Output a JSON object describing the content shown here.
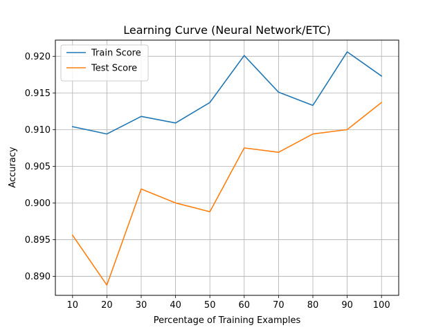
{
  "chart_data": {
    "type": "line",
    "title": "Learning Curve (Neural Network/ETC)",
    "xlabel": "Percentage of Training Examples",
    "ylabel": "Accuracy",
    "x": [
      10,
      20,
      30,
      40,
      50,
      60,
      70,
      80,
      90,
      100
    ],
    "xlim": [
      5,
      105
    ],
    "ylim": [
      0.8874,
      0.9222
    ],
    "yticks": [
      0.89,
      0.895,
      0.9,
      0.905,
      0.91,
      0.915,
      0.92
    ],
    "ytick_labels": [
      "0.890",
      "0.895",
      "0.900",
      "0.905",
      "0.910",
      "0.915",
      "0.920"
    ],
    "xtick_labels": [
      "10",
      "20",
      "30",
      "40",
      "50",
      "60",
      "70",
      "80",
      "90",
      "100"
    ],
    "grid": true,
    "legend_position": "top-left",
    "series": [
      {
        "name": "Train Score",
        "color": "#1f77b4",
        "values": [
          0.9104,
          0.9094,
          0.9118,
          0.9109,
          0.9137,
          0.9201,
          0.9151,
          0.9133,
          0.9206,
          0.9173
        ]
      },
      {
        "name": "Test Score",
        "color": "#ff7f0e",
        "values": [
          0.8956,
          0.8888,
          0.9019,
          0.9,
          0.8988,
          0.9075,
          0.9069,
          0.9094,
          0.91,
          0.9137
        ]
      }
    ]
  }
}
